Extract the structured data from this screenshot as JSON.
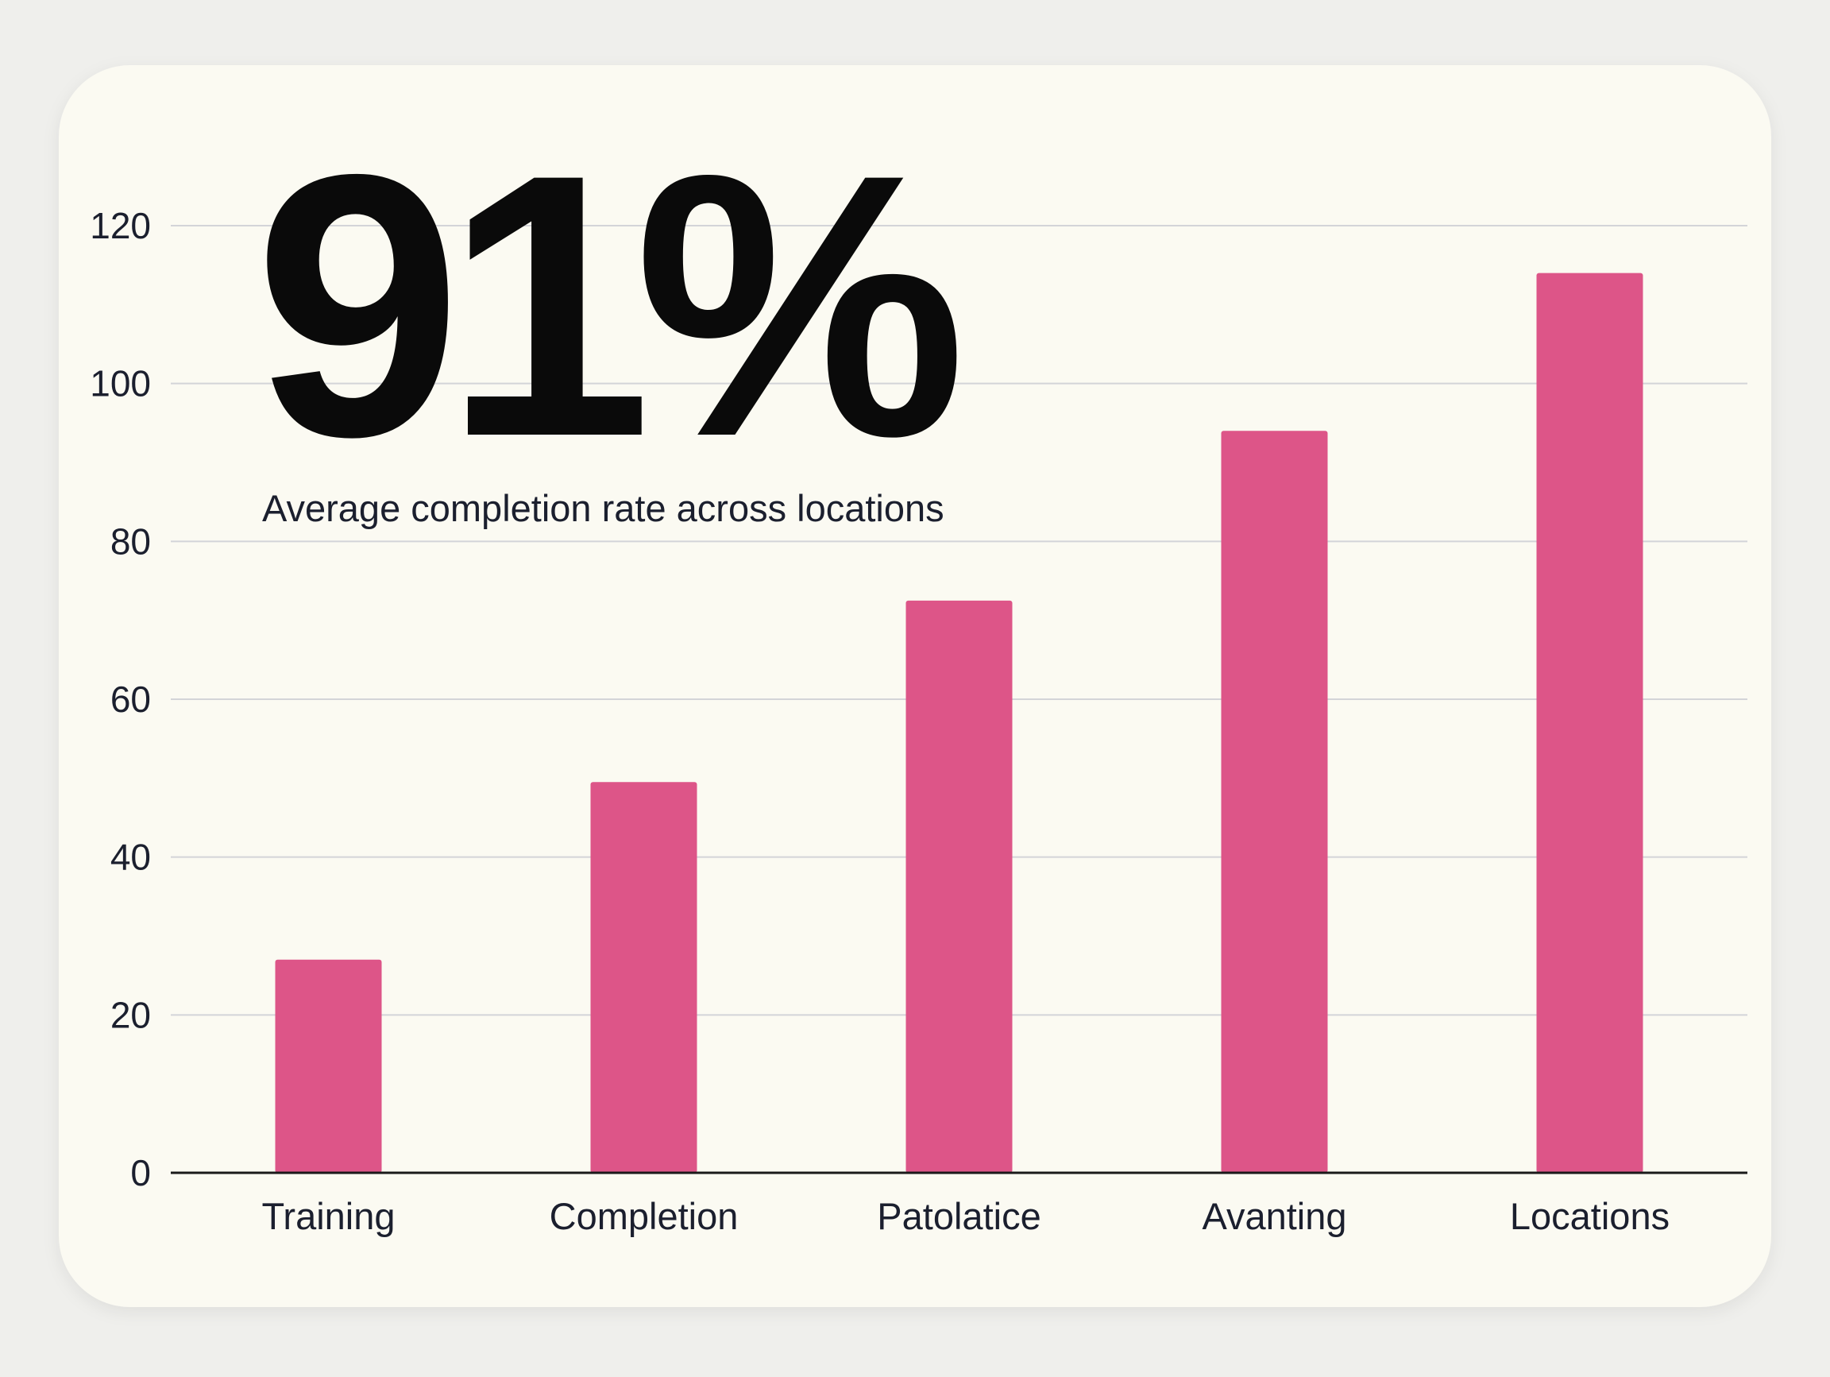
{
  "kpi": {
    "value": "91%",
    "caption": "Average completion rate across locations"
  },
  "colors": {
    "background": "#efefec",
    "card": "#fbfaf2",
    "bar": "#dd5588",
    "grid": "#d3d4d8",
    "axis": "#1a1a1a",
    "text": "#1b1f2e"
  },
  "chart_data": {
    "type": "bar",
    "title": "",
    "xlabel": "",
    "ylabel": "",
    "categories": [
      "Training",
      "Completion",
      "Patolatice",
      "Avanting",
      "Locations"
    ],
    "values": [
      27,
      49.5,
      72.5,
      94,
      114
    ],
    "ylim": [
      0,
      120
    ],
    "yticks": [
      0,
      20,
      40,
      60,
      80,
      100,
      120
    ],
    "grid": true,
    "legend": "none"
  }
}
